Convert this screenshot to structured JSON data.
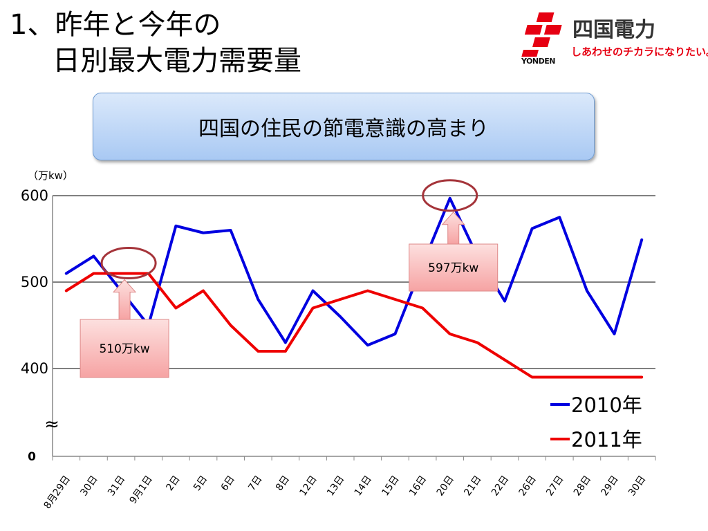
{
  "slide": {
    "title_line1": "1、昨年と今年の",
    "title_line2": "日別最大電力需要量",
    "banner_text": "四国の住民の節電意識の高まり"
  },
  "logo": {
    "name": "四国電力",
    "latin": "YONDEN",
    "slogan": "しあわせのチカラになりたい。",
    "brand_color": "#e60012"
  },
  "chart_data": {
    "type": "line",
    "unit_label": "（万kw）",
    "categories": [
      "8月29日",
      "30日",
      "31日",
      "9月1日",
      "2日",
      "5日",
      "6日",
      "7日",
      "8日",
      "12日",
      "13日",
      "14日",
      "15日",
      "16日",
      "20日",
      "21日",
      "22日",
      "26日",
      "27日",
      "28日",
      "29日",
      "30日"
    ],
    "series": [
      {
        "name": "2010年",
        "color": "#0000e0",
        "values": [
          510,
          530,
          490,
          450,
          565,
          557,
          560,
          480,
          430,
          490,
          460,
          427,
          440,
          520,
          597,
          530,
          478,
          562,
          575,
          490,
          440,
          549
        ]
      },
      {
        "name": "2011年",
        "color": "#ee0000",
        "values": [
          490,
          510,
          510,
          510,
          470,
          490,
          450,
          420,
          420,
          470,
          480,
          490,
          480,
          470,
          440,
          430,
          410,
          390,
          390,
          390,
          390,
          390
        ]
      }
    ],
    "y_ticks": [
      {
        "label": "600",
        "value": 600
      },
      {
        "label": "500",
        "value": 500
      },
      {
        "label": "400",
        "value": 400
      }
    ],
    "y_zero_label": "0",
    "axis_break_symbol": "≈",
    "ylim": [
      380,
      600
    ],
    "grid": true,
    "legend_position": "bottom-right",
    "annotations": [
      {
        "text": "510万kw",
        "series": 1,
        "index": 2
      },
      {
        "text": "597万kw",
        "series": 0,
        "index": 14
      }
    ]
  }
}
